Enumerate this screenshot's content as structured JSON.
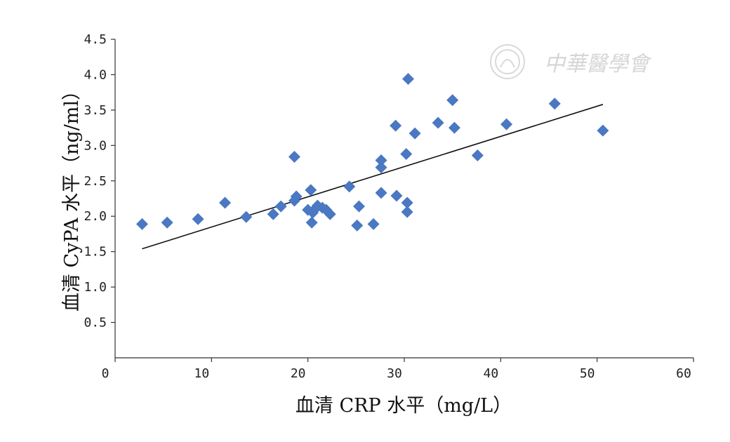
{
  "chart_data": {
    "type": "scatter",
    "xlabel": "血清 CRP 水平（mg/L）",
    "ylabel": "血清 CyPA 水平（ng/ml）",
    "xlim": [
      0,
      60
    ],
    "ylim": [
      0,
      4.5
    ],
    "x_ticks": [
      "0",
      "10",
      "20",
      "30",
      "40",
      "50",
      "60"
    ],
    "y_ticks": [
      "0.5",
      "1.0",
      "1.5",
      "2.0",
      "2.5",
      "3.0",
      "3.5",
      "4.0",
      "4.5"
    ],
    "grid": false,
    "points": [
      {
        "x": 2.8,
        "y": 1.89
      },
      {
        "x": 5.4,
        "y": 1.91
      },
      {
        "x": 8.6,
        "y": 1.96
      },
      {
        "x": 11.4,
        "y": 2.19
      },
      {
        "x": 13.6,
        "y": 1.99
      },
      {
        "x": 16.4,
        "y": 2.03
      },
      {
        "x": 17.2,
        "y": 2.14
      },
      {
        "x": 18.6,
        "y": 2.84
      },
      {
        "x": 18.6,
        "y": 2.22
      },
      {
        "x": 18.8,
        "y": 2.28
      },
      {
        "x": 20.0,
        "y": 2.09
      },
      {
        "x": 20.3,
        "y": 2.37
      },
      {
        "x": 20.4,
        "y": 1.91
      },
      {
        "x": 20.5,
        "y": 2.05
      },
      {
        "x": 20.8,
        "y": 2.11
      },
      {
        "x": 21.0,
        "y": 2.15
      },
      {
        "x": 21.5,
        "y": 2.12
      },
      {
        "x": 21.9,
        "y": 2.09
      },
      {
        "x": 22.3,
        "y": 2.03
      },
      {
        "x": 24.3,
        "y": 2.42
      },
      {
        "x": 25.1,
        "y": 1.87
      },
      {
        "x": 25.3,
        "y": 2.14
      },
      {
        "x": 26.8,
        "y": 1.89
      },
      {
        "x": 27.6,
        "y": 2.79
      },
      {
        "x": 27.6,
        "y": 2.69
      },
      {
        "x": 27.6,
        "y": 2.33
      },
      {
        "x": 29.1,
        "y": 3.28
      },
      {
        "x": 29.2,
        "y": 2.29
      },
      {
        "x": 30.2,
        "y": 2.88
      },
      {
        "x": 30.3,
        "y": 2.19
      },
      {
        "x": 30.3,
        "y": 2.06
      },
      {
        "x": 30.4,
        "y": 3.94
      },
      {
        "x": 31.1,
        "y": 3.17
      },
      {
        "x": 33.5,
        "y": 3.32
      },
      {
        "x": 35.0,
        "y": 3.64
      },
      {
        "x": 35.2,
        "y": 3.25
      },
      {
        "x": 37.6,
        "y": 2.86
      },
      {
        "x": 40.6,
        "y": 3.3
      },
      {
        "x": 45.6,
        "y": 3.59
      },
      {
        "x": 50.6,
        "y": 3.21
      }
    ],
    "trendline": {
      "x": [
        2.8,
        50.6
      ],
      "y": [
        1.54,
        3.58
      ]
    },
    "colors": {
      "marker": "#4a78c2",
      "trendline": "#111111"
    }
  },
  "watermark": {
    "text": "中華醫學會",
    "seal_icon": "seal-icon"
  }
}
